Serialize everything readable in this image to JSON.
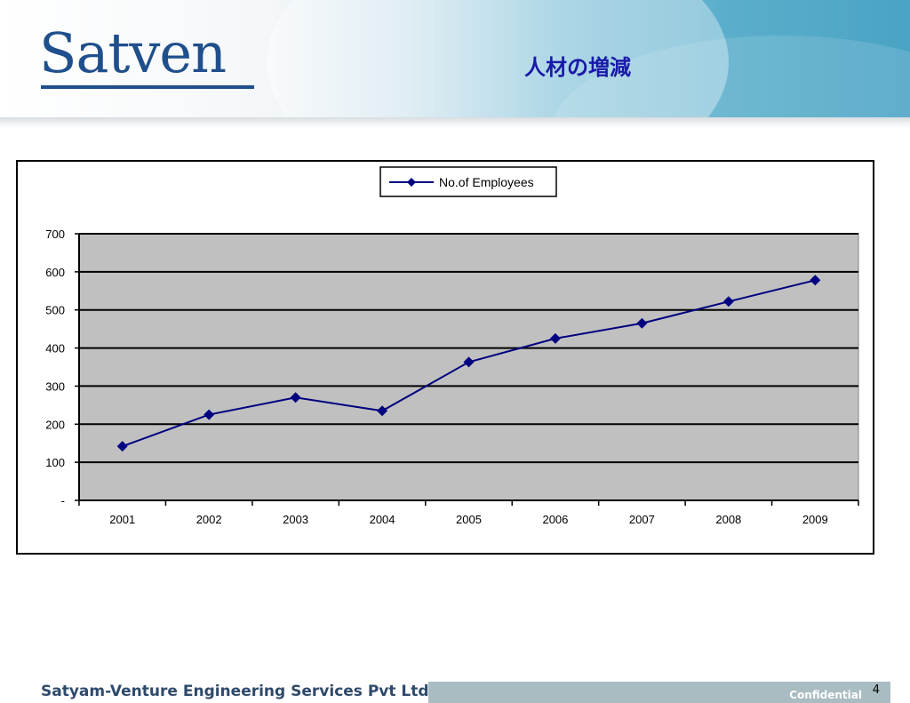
{
  "header": {
    "logo_text": "Satven",
    "title": "人材の増減"
  },
  "footer": {
    "company": "Satyam-Venture Engineering Services Pvt Ltd",
    "confidential": "Confidential",
    "page_number": "4"
  },
  "colors": {
    "series": "#000080",
    "plot_bg": "#c0c0c0",
    "title": "#1a1aa8",
    "logo": "#1f4f8c"
  },
  "chart_data": {
    "type": "line",
    "title": "",
    "xlabel": "",
    "ylabel": "",
    "categories": [
      "2001",
      "2002",
      "2003",
      "2004",
      "2005",
      "2006",
      "2007",
      "2008",
      "2009"
    ],
    "series": [
      {
        "name": "No.of Employees",
        "values": [
          142,
          225,
          270,
          235,
          363,
          425,
          465,
          522,
          578
        ],
        "marker": "diamond"
      }
    ],
    "ylim": [
      0,
      700
    ],
    "yticks": [
      0,
      100,
      200,
      300,
      400,
      500,
      600,
      700
    ],
    "ytick_labels": [
      "-",
      "100",
      "200",
      "300",
      "400",
      "500",
      "600",
      "700"
    ],
    "grid": "horizontal",
    "legend": "top-center"
  }
}
